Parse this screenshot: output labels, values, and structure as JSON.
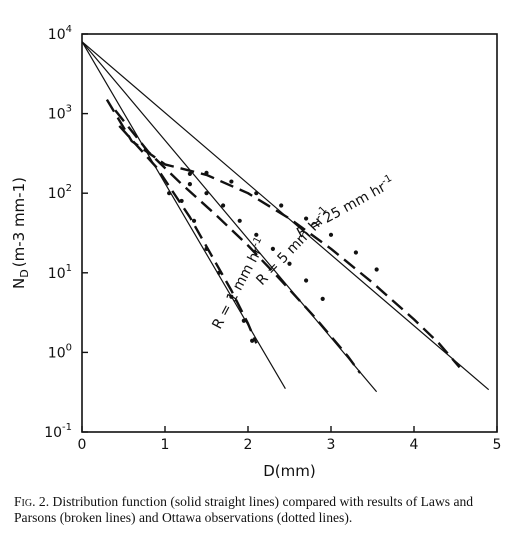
{
  "chart_data": {
    "type": "line",
    "xlabel": "D(mm)",
    "ylabel": "N_D (m^-3 mm^-1)",
    "x_ticks": [
      "0",
      "1",
      "2",
      "3",
      "4",
      "5"
    ],
    "y_ticks": [
      {
        "base": "10",
        "exp": "4"
      },
      {
        "base": "10",
        "exp": "3"
      },
      {
        "base": "10",
        "exp": "2"
      },
      {
        "base": "10",
        "exp": "1"
      },
      {
        "base": "10",
        "exp": "0"
      },
      {
        "base": "10",
        "exp": "-1"
      }
    ],
    "xlim": [
      0,
      5
    ],
    "ylim": [
      0.1,
      10000
    ],
    "yscale": "log",
    "grid": false,
    "series": [
      {
        "name": "R = 1 mm hr-1",
        "style": "solid",
        "points": [
          [
            0.0,
            8000
          ],
          [
            2.45,
            0.35
          ]
        ]
      },
      {
        "name": "R = 5 mm hr-1",
        "style": "solid",
        "points": [
          [
            0.0,
            8000
          ],
          [
            3.55,
            0.32
          ]
        ]
      },
      {
        "name": "R = 25 mm hr-1",
        "style": "solid",
        "points": [
          [
            0.0,
            8000
          ],
          [
            4.9,
            0.34
          ]
        ]
      },
      {
        "name": "R = 1 mm hr-1",
        "style": "broken",
        "points": [
          [
            0.45,
            700
          ],
          [
            0.9,
            210
          ],
          [
            1.3,
            50
          ],
          [
            1.6,
            14
          ],
          [
            1.8,
            6
          ],
          [
            2.0,
            2.3
          ],
          [
            2.1,
            1.3
          ]
        ]
      },
      {
        "name": "R = 5 mm hr-1",
        "style": "broken",
        "points": [
          [
            0.4,
            1100
          ],
          [
            0.8,
            330
          ],
          [
            1.2,
            130
          ],
          [
            1.6,
            55
          ],
          [
            2.0,
            22
          ],
          [
            2.4,
            8
          ],
          [
            2.8,
            2.8
          ],
          [
            3.2,
            0.9
          ],
          [
            3.35,
            0.55
          ]
        ]
      },
      {
        "name": "R = 25 mm hr-1",
        "style": "broken",
        "points": [
          [
            0.3,
            1500
          ],
          [
            0.6,
            450
          ],
          [
            1.0,
            230
          ],
          [
            1.5,
            170
          ],
          [
            2.0,
            100
          ],
          [
            2.5,
            48
          ],
          [
            3.0,
            20
          ],
          [
            3.5,
            7.5
          ],
          [
            4.0,
            2.6
          ],
          [
            4.3,
            1.3
          ],
          [
            4.55,
            0.65
          ]
        ]
      },
      {
        "name": "R = 1 mm hr-1",
        "style": "dotted",
        "points": [
          [
            1.05,
            100
          ],
          [
            1.2,
            80
          ],
          [
            1.35,
            45
          ],
          [
            1.5,
            20
          ],
          [
            1.65,
            10
          ],
          [
            1.8,
            5
          ],
          [
            1.95,
            2.5
          ],
          [
            2.05,
            1.4
          ]
        ]
      },
      {
        "name": "R = 5 mm hr-1",
        "style": "dotted",
        "points": [
          [
            1.3,
            130
          ],
          [
            1.5,
            100
          ],
          [
            1.7,
            70
          ],
          [
            1.9,
            45
          ],
          [
            2.1,
            30
          ],
          [
            2.3,
            20
          ],
          [
            2.5,
            13
          ],
          [
            2.7,
            8
          ],
          [
            2.9,
            4.7
          ]
        ]
      },
      {
        "name": "R = 25 mm hr-1",
        "style": "dotted",
        "points": [
          [
            1.3,
            175
          ],
          [
            1.5,
            180
          ],
          [
            1.8,
            140
          ],
          [
            2.1,
            100
          ],
          [
            2.4,
            70
          ],
          [
            2.7,
            48
          ],
          [
            3.0,
            30
          ],
          [
            3.3,
            18
          ],
          [
            3.55,
            11
          ]
        ]
      }
    ],
    "annotations": [
      {
        "text": "R = 1 mm hr",
        "sup": "-1"
      },
      {
        "text": "R = 5 mm hr",
        "sup": "-1"
      },
      {
        "text": "R = 25 mm hr",
        "sup": "-1"
      }
    ]
  },
  "caption": {
    "label": "Fig. 2.",
    "text": "Distribution function (solid straight lines) compared with results of Laws and Parsons (broken lines) and Ottawa observations (dotted lines)."
  }
}
